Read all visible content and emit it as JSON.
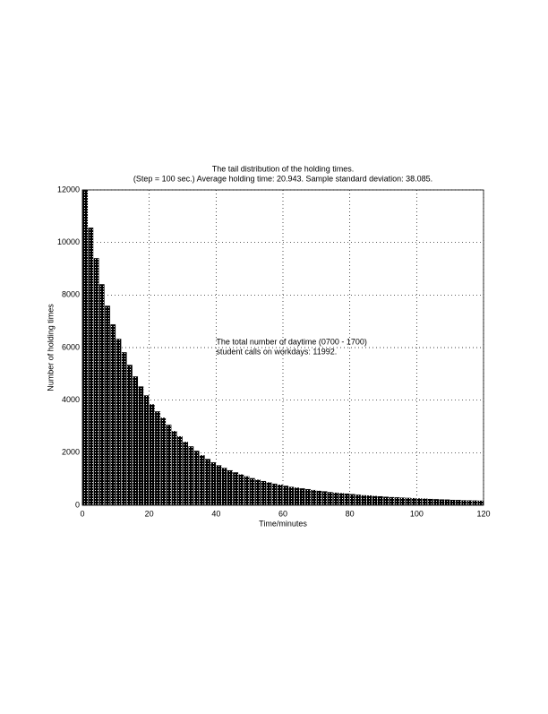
{
  "chart_data": {
    "type": "histogram",
    "title": "The tail distribution of the holding times.",
    "subtitle": "(Step = 100 sec.) Average holding time: 20.943. Sample standard deviation: 38.085.",
    "xlabel": "Time/minutes",
    "ylabel": "Number of holding times",
    "annotation": [
      "The total number of daytime (0700 - 1700)",
      "student calls on workdays: 11992."
    ],
    "annotation_x": 40,
    "annotation_y": 6200,
    "color": "#000000",
    "grid": true,
    "bins": [
      0,
      1.6667,
      3.3333,
      5,
      6.6667,
      8.3333,
      10,
      11.6667,
      13.3333,
      15,
      16.6667,
      18.3333,
      20,
      21.6667,
      23.3333,
      25,
      26.6667,
      28.3333,
      30,
      31.6667,
      33.3333,
      35,
      36.6667,
      38.3333,
      40,
      41.6667,
      43.3333,
      45,
      46.6667,
      48.3333,
      50,
      51.6667,
      53.3333,
      55,
      56.6667,
      58.3333,
      60,
      61.6667,
      63.3333,
      65,
      66.6667,
      68.3333,
      70,
      71.6667,
      73.3333,
      75,
      76.6667,
      78.3333,
      80,
      81.6667,
      83.3333,
      85,
      86.6667,
      88.3333,
      90,
      91.6667,
      93.3333,
      95,
      96.6667,
      98.3333,
      100,
      101.6667,
      103.3333,
      105,
      106.6667,
      108.3333,
      110,
      111.6667,
      113.3333,
      115,
      116.6667,
      118.3333,
      120
    ],
    "values": [
      12000,
      10570,
      9410,
      8420,
      7600,
      6890,
      6340,
      5830,
      5350,
      4910,
      4530,
      4190,
      3850,
      3580,
      3340,
      3070,
      2830,
      2630,
      2420,
      2250,
      2080,
      1910,
      1770,
      1640,
      1530,
      1430,
      1340,
      1260,
      1180,
      1110,
      1040,
      980,
      930,
      880,
      830,
      790,
      750,
      710,
      680,
      650,
      620,
      590,
      560,
      540,
      510,
      490,
      470,
      450,
      430,
      410,
      390,
      380,
      360,
      350,
      330,
      320,
      310,
      300,
      290,
      280,
      270,
      260,
      250,
      240,
      230,
      225,
      215,
      210,
      200,
      195,
      190,
      185
    ],
    "xlim": [
      0,
      120
    ],
    "ylim": [
      0,
      12000
    ],
    "xticks": [
      0,
      20,
      40,
      60,
      80,
      100,
      120
    ],
    "yticks": [
      0,
      2000,
      4000,
      6000,
      8000,
      10000,
      12000
    ]
  }
}
